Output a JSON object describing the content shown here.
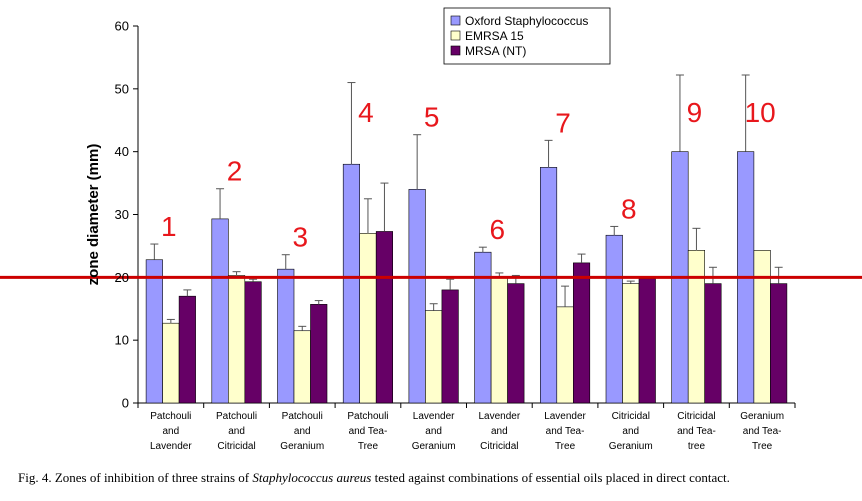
{
  "chart_data": {
    "type": "bar",
    "ylabel": "zone diameter (mm)",
    "ylim": [
      0,
      60
    ],
    "yticks": [
      0,
      10,
      20,
      30,
      40,
      50,
      60
    ],
    "categories": [
      [
        "Patchouli",
        "and",
        "Lavender"
      ],
      [
        "Patchouli",
        "and",
        "Citricidal"
      ],
      [
        "Patchouli",
        "and",
        "Geranium"
      ],
      [
        "Patchouli",
        "and Tea-",
        "Tree"
      ],
      [
        "Lavender",
        "and",
        "Geranium"
      ],
      [
        "Lavender",
        "and",
        "Citricidal"
      ],
      [
        "Lavender",
        "and Tea-",
        "Tree"
      ],
      [
        "Citricidal",
        "and",
        "Geranium"
      ],
      [
        "Citricidal",
        "and Tea-",
        "tree"
      ],
      [
        "Geranium",
        "and Tea-",
        "Tree"
      ]
    ],
    "series": [
      {
        "name": "Oxford Staphylococcus",
        "color": "#9999ff",
        "values": [
          22.8,
          29.3,
          21.3,
          38.0,
          34.0,
          24.0,
          37.5,
          26.7,
          40.0,
          40.0
        ],
        "errors": [
          2.5,
          4.8,
          2.3,
          13.0,
          8.7,
          0.8,
          4.3,
          1.4,
          12.2,
          12.2
        ]
      },
      {
        "name": "EMRSA 15",
        "color": "#ffffcc",
        "values": [
          12.7,
          20.3,
          11.5,
          27.0,
          14.7,
          20.0,
          15.3,
          19.0,
          24.3,
          24.3
        ],
        "errors": [
          0.6,
          0.6,
          0.7,
          5.5,
          1.1,
          0.7,
          3.3,
          0.4,
          3.5,
          0.0
        ]
      },
      {
        "name": "MRSA (NT)",
        "color": "#660066",
        "values": [
          17.0,
          19.3,
          15.7,
          27.3,
          18.0,
          19.0,
          22.3,
          19.8,
          19.0,
          19.0
        ],
        "errors": [
          1.0,
          0.4,
          0.6,
          7.7,
          1.7,
          1.3,
          1.4,
          0.3,
          2.6,
          2.6
        ]
      }
    ],
    "reference_line": {
      "y": 20,
      "color": "#cc0000"
    },
    "annotations": [
      "1",
      "2",
      "3",
      "4",
      "5",
      "6",
      "7",
      "8",
      "9",
      "10"
    ],
    "annotation_color": "#e8171c",
    "legend_position": "top-center"
  },
  "caption": {
    "prefix": "Fig. 4.  Zones of inhibition of three strains of ",
    "italic": "Staphylococcus aureus",
    "suffix": " tested against combinations of essential oils placed in direct contact."
  }
}
